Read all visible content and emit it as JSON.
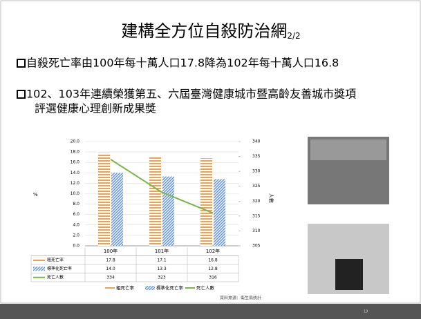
{
  "slide": {
    "title": "建構全方位自殺防治網",
    "title_sub": "2/2",
    "bullets": [
      "自殺死亡率由100年每十萬人口17.8降為102年每十萬人口16.8",
      "102、103年連續榮獲第五、六屆臺灣健康城市暨高齡友善城市獎項",
      "評選健康心理創新成果獎"
    ],
    "source": "資料來源：衛生局統計",
    "page_number": "19"
  },
  "chart_data": {
    "type": "bar",
    "categories": [
      "100年",
      "101年",
      "102年"
    ],
    "y_label": "%",
    "y2_label": "人數",
    "ylim": [
      0,
      20
    ],
    "yticks": [
      {
        "value": 0,
        "label": "0.0"
      },
      {
        "value": 2,
        "label": "2.0"
      },
      {
        "value": 4,
        "label": "4.0"
      },
      {
        "value": 6,
        "label": "6.0"
      },
      {
        "value": 8,
        "label": "8.0"
      },
      {
        "value": 10,
        "label": "10.0"
      },
      {
        "value": 12,
        "label": "12.0"
      },
      {
        "value": 14,
        "label": "14.0"
      },
      {
        "value": 16,
        "label": "16.0"
      },
      {
        "value": 18,
        "label": "18.0"
      },
      {
        "value": 20,
        "label": "20.0"
      }
    ],
    "y2lim": [
      305,
      340
    ],
    "y2ticks": [
      305,
      310,
      315,
      320,
      325,
      330,
      335,
      340
    ],
    "series": [
      {
        "name": "粗死亡率",
        "color": "#f0a050",
        "values": [
          17.8,
          17.1,
          16.8
        ],
        "value_labels": [
          "17.8",
          "17.1",
          "16.8"
        ]
      },
      {
        "name": "標準化死亡率",
        "color": "#5b8fd0",
        "values": [
          14.0,
          13.3,
          12.8
        ],
        "value_labels": [
          "14.0",
          "13.3",
          "12.8"
        ]
      },
      {
        "name": "死亡人數",
        "type": "line",
        "axis": "y2",
        "color": "#7ab648",
        "values": [
          334,
          323,
          316
        ]
      }
    ]
  }
}
